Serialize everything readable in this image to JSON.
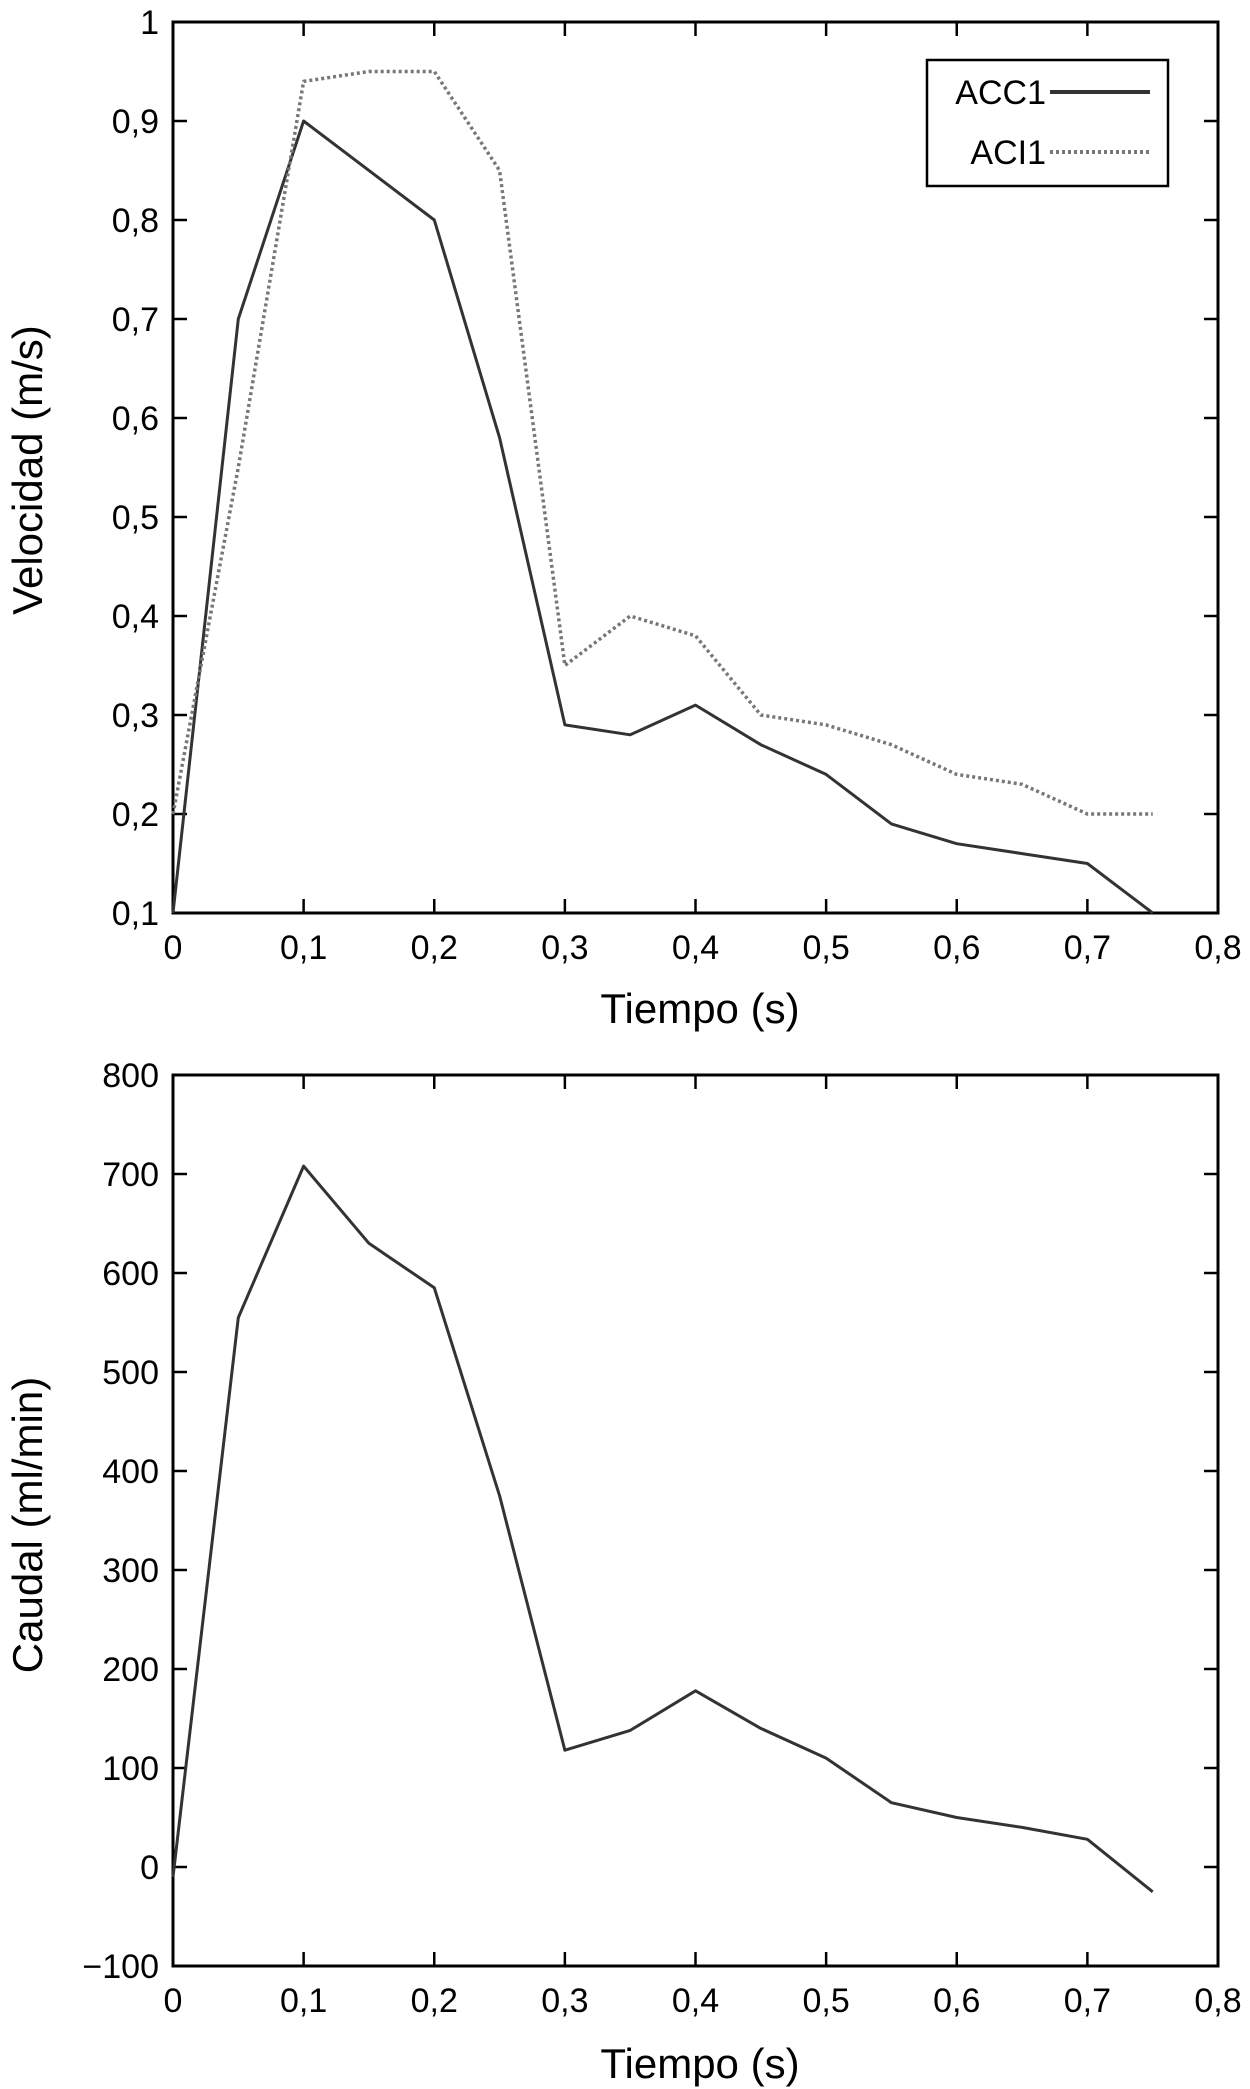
{
  "chart_data": [
    {
      "type": "line",
      "title": "",
      "xlabel": "Tiempo (s)",
      "ylabel": "Velocidad (m/s)",
      "xlim": [
        0,
        0.8
      ],
      "ylim": [
        0.1,
        1
      ],
      "xticks": [
        "0",
        "0,1",
        "0,2",
        "0,3",
        "0,4",
        "0,5",
        "0,6",
        "0,7",
        "0,8"
      ],
      "yticks": [
        "0,1",
        "0,2",
        "0,3",
        "0,4",
        "0,5",
        "0,6",
        "0,7",
        "0,8",
        "0,9",
        "1"
      ],
      "grid": false,
      "legend_position": "top-right",
      "series": [
        {
          "name": "ACC1",
          "style": "solid",
          "color": "#333333",
          "x": [
            0,
            0.05,
            0.1,
            0.2,
            0.25,
            0.3,
            0.35,
            0.4,
            0.45,
            0.5,
            0.55,
            0.6,
            0.65,
            0.7,
            0.75
          ],
          "values": [
            0.1,
            0.7,
            0.9,
            0.8,
            0.58,
            0.29,
            0.28,
            0.31,
            0.27,
            0.24,
            0.19,
            0.17,
            0.16,
            0.15,
            0.1
          ]
        },
        {
          "name": "ACI1",
          "style": "dotted",
          "color": "#777777",
          "x": [
            0,
            0.05,
            0.1,
            0.15,
            0.2,
            0.25,
            0.3,
            0.35,
            0.4,
            0.45,
            0.5,
            0.55,
            0.6,
            0.65,
            0.7,
            0.75
          ],
          "values": [
            0.2,
            0.55,
            0.94,
            0.95,
            0.95,
            0.85,
            0.35,
            0.4,
            0.38,
            0.3,
            0.29,
            0.27,
            0.24,
            0.23,
            0.2,
            0.2
          ]
        }
      ]
    },
    {
      "type": "line",
      "title": "",
      "xlabel": "Tiempo (s)",
      "ylabel": "Caudal (ml/min)",
      "xlim": [
        0,
        0.8
      ],
      "ylim": [
        -100,
        800
      ],
      "xticks": [
        "0",
        "0,1",
        "0,2",
        "0,3",
        "0,4",
        "0,5",
        "0,6",
        "0,7",
        "0,8"
      ],
      "yticks": [
        "−100",
        "0",
        "100",
        "200",
        "300",
        "400",
        "500",
        "600",
        "700",
        "800"
      ],
      "grid": false,
      "series": [
        {
          "style": "solid",
          "color": "#333333",
          "x": [
            0,
            0.05,
            0.1,
            0.15,
            0.2,
            0.25,
            0.3,
            0.35,
            0.4,
            0.45,
            0.5,
            0.55,
            0.6,
            0.65,
            0.7,
            0.75
          ],
          "values": [
            -10,
            555,
            708,
            630,
            585,
            375,
            118,
            138,
            178,
            140,
            110,
            65,
            50,
            40,
            28,
            -25
          ]
        }
      ]
    }
  ]
}
